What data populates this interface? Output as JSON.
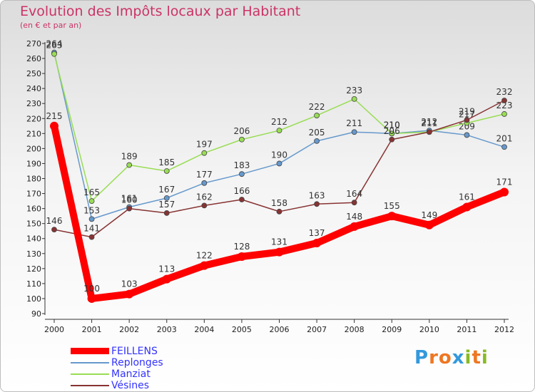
{
  "chart_data": {
    "type": "line",
    "title": "Evolution des Impôts locaux par Habitant",
    "subtitle": "(en € et par an)",
    "x": [
      2000,
      2001,
      2002,
      2003,
      2004,
      2005,
      2006,
      2007,
      2008,
      2009,
      2010,
      2011,
      2012
    ],
    "ylim": [
      90,
      270
    ],
    "yticks": [
      90,
      100,
      110,
      120,
      130,
      140,
      150,
      160,
      170,
      180,
      190,
      200,
      210,
      220,
      230,
      240,
      250,
      260,
      270
    ],
    "series": [
      {
        "name": "FEILLENS",
        "color": "#ff0000",
        "values": [
          215,
          100,
          103,
          113,
          122,
          128,
          131,
          137,
          148,
          155,
          149,
          161,
          171
        ]
      },
      {
        "name": "Replonges",
        "color": "#6699cc",
        "values": [
          264,
          153,
          161,
          167,
          177,
          183,
          190,
          205,
          211,
          210,
          212,
          209,
          201
        ]
      },
      {
        "name": "Manziat",
        "color": "#99dd55",
        "values": [
          263,
          165,
          189,
          185,
          197,
          206,
          212,
          222,
          233,
          210,
          211,
          217,
          223
        ]
      },
      {
        "name": "Vésines",
        "color": "#883333",
        "values": [
          146,
          141,
          160,
          157,
          162,
          166,
          158,
          163,
          164,
          206,
          211,
          219,
          232
        ]
      }
    ]
  },
  "logo": {
    "text": "Proxiti",
    "letters": [
      "P",
      "r",
      "o",
      "x",
      "i",
      "t",
      "i"
    ]
  }
}
